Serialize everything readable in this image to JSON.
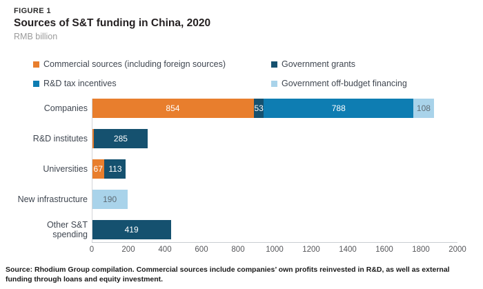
{
  "header": {
    "figure_label": "FIGURE 1",
    "title": "Sources of S&T funding in China, 2020",
    "subtitle": "RMB billion"
  },
  "source_note": "Source: Rhodium Group compilation. Commercial sources include companies’ own profits reinvested in R&D, as well as external funding through loans and equity investment.",
  "colors": {
    "commercial": "#E87E2D",
    "grants": "#15516F",
    "tax": "#0E7DB2",
    "offbudget": "#A9D3EA",
    "axis_line": "#C9CDD1",
    "tick_text": "#55565A",
    "label_text": "#3F4650"
  },
  "chart_data": {
    "type": "bar",
    "orientation": "horizontal-stacked",
    "title": "Sources of S&T funding in China, 2020",
    "unit": "RMB billion",
    "xlim": [
      0,
      2000
    ],
    "x_ticks": [
      0,
      200,
      400,
      600,
      800,
      1000,
      1200,
      1400,
      1600,
      1800,
      2000
    ],
    "grid": false,
    "legend_position": "top",
    "series": [
      {
        "key": "commercial",
        "name": "Commercial sources (including foreign sources)",
        "color": "#E87E2D"
      },
      {
        "key": "grants",
        "name": "Government grants",
        "color": "#15516F"
      },
      {
        "key": "tax",
        "name": "R&D tax incentives",
        "color": "#0E7DB2"
      },
      {
        "key": "offbudget",
        "name": "Government off-budget financing",
        "color": "#A9D3EA"
      }
    ],
    "rows": [
      {
        "category": "Companies",
        "segments": [
          {
            "series": "commercial",
            "value": 854,
            "label": "854"
          },
          {
            "series": "grants",
            "value": 53,
            "label": "53"
          },
          {
            "series": "tax",
            "value": 788,
            "label": "788"
          },
          {
            "series": "offbudget",
            "value": 108,
            "label": "108"
          }
        ]
      },
      {
        "category": "R&D institutes",
        "segments": [
          {
            "series": "commercial",
            "value": 10,
            "label": ""
          },
          {
            "series": "grants",
            "value": 285,
            "label": "285"
          }
        ]
      },
      {
        "category": "Universities",
        "segments": [
          {
            "series": "commercial",
            "value": 67,
            "label": "67"
          },
          {
            "series": "grants",
            "value": 113,
            "label": "113"
          }
        ]
      },
      {
        "category": "New infrastructure",
        "segments": [
          {
            "series": "offbudget",
            "value": 190,
            "label": "190"
          }
        ]
      },
      {
        "category": "Other S&T spending",
        "segments": [
          {
            "series": "grants",
            "value": 419,
            "label": "419"
          }
        ]
      }
    ]
  }
}
